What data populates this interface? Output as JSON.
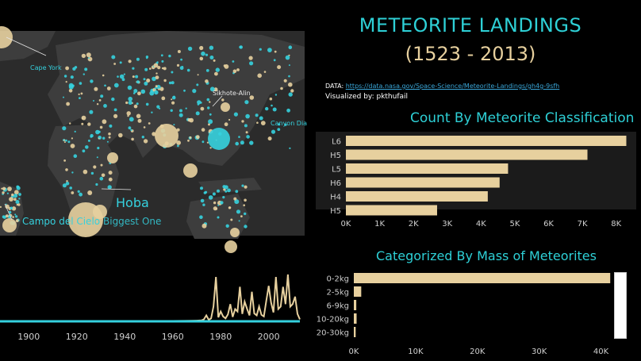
{
  "header": {
    "title": "METEORITE LANDINGS",
    "subtitle": "(1523 - 2013)",
    "data_label": "DATA: ",
    "data_link": "https://data.nasa.gov/Space-Science/Meteorite-Landings/gh4g-9sfh",
    "visualized_by": "Visualized by: pkthufail"
  },
  "map": {
    "labels": {
      "cape_york": "Cape York",
      "sikhote_alin": "Sikhote-Alin",
      "canyon_diablo": "Canyon Dia",
      "campo_del_cielo": "Campo del Cielo",
      "hoba": "Hoba",
      "biggest_one": "Biggest One"
    },
    "colors": {
      "land": "#3d3d3d",
      "water": "#2b2b2b",
      "found": "#e7d09e",
      "fell": "#35d1de"
    }
  },
  "colors": {
    "accent": "#2ed0d6",
    "bar": "#e7d09e",
    "panel": "#1b1b1b",
    "line": "#e7d09e",
    "baseline": "#35d1de"
  },
  "count_chart": {
    "title": "Count By Meteorite Classification",
    "chart_data": {
      "type": "bar",
      "orientation": "horizontal",
      "categories": [
        "L6",
        "H5",
        "L5",
        "H6",
        "H4",
        "H5"
      ],
      "values": [
        8300,
        7150,
        4800,
        4550,
        4200,
        2700
      ],
      "xticks": [
        0,
        1000,
        2000,
        3000,
        4000,
        5000,
        6000,
        7000,
        8000
      ],
      "xtick_labels": [
        "0K",
        "1K",
        "2K",
        "3K",
        "4K",
        "5K",
        "6K",
        "7K",
        "8K"
      ],
      "xlim": [
        0,
        8500
      ]
    }
  },
  "mass_chart": {
    "title": "Categorized By Mass of Meteorites",
    "chart_data": {
      "type": "bar",
      "orientation": "horizontal",
      "categories": [
        "0-2kg",
        "2-5kg",
        "6-9kg",
        "10-20kg",
        "20-30kg"
      ],
      "values": [
        41500,
        1200,
        400,
        450,
        300
      ],
      "xticks": [
        0,
        10000,
        20000,
        30000,
        40000
      ],
      "xtick_labels": [
        "0K",
        "10K",
        "20K",
        "30K",
        "40K"
      ],
      "xlim": [
        0,
        42500
      ]
    }
  },
  "timeline_chart": {
    "chart_data": {
      "type": "line",
      "xticks": [
        1900,
        1920,
        1940,
        1960,
        1980,
        2000
      ],
      "xlim": [
        1888,
        2013
      ],
      "series": [
        {
          "x": [
            1888,
            1900,
            1910,
            1920,
            1930,
            1940,
            1950,
            1960,
            1965,
            1968,
            1970,
            1972,
            1973,
            1974,
            1975,
            1976,
            1977,
            1978,
            1979,
            1980,
            1981,
            1982,
            1983,
            1984,
            1985,
            1986,
            1987,
            1988,
            1989,
            1990,
            1991,
            1992,
            1993,
            1994,
            1995,
            1996,
            1997,
            1998,
            1999,
            2000,
            2001,
            2002,
            2003,
            2004,
            2005,
            2006,
            2007,
            2008,
            2009,
            2010,
            2011,
            2012,
            2013
          ],
          "y": [
            3,
            4,
            4,
            5,
            5,
            5,
            6,
            8,
            10,
            12,
            15,
            20,
            40,
            120,
            30,
            60,
            300,
            900,
            80,
            200,
            100,
            60,
            140,
            350,
            90,
            250,
            200,
            700,
            150,
            400,
            250,
            120,
            600,
            160,
            120,
            300,
            130,
            100,
            420,
            720,
            380,
            180,
            900,
            250,
            300,
            700,
            350,
            950,
            300,
            350,
            500,
            150,
            40
          ]
        },
        {
          "x": [
            1888,
            2013
          ],
          "y": [
            1,
            1
          ]
        }
      ]
    }
  }
}
